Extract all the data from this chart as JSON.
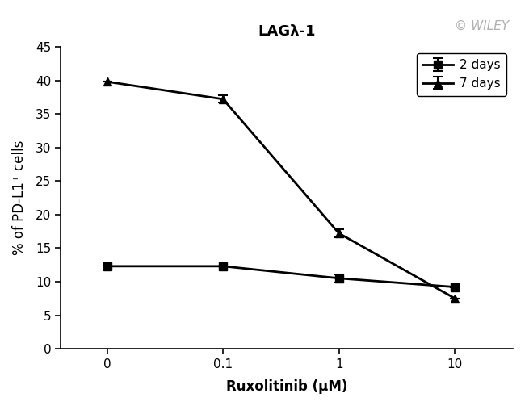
{
  "title": "LAGλ-1",
  "xlabel": "Ruxolitinib (μM)",
  "ylabel": "% of PD-L1⁺ cells",
  "x_labels": [
    "0",
    "0.1",
    "1",
    "10"
  ],
  "x_positions": [
    0,
    1,
    2,
    3
  ],
  "series": [
    {
      "label": "2 days",
      "marker": "s",
      "y": [
        12.3,
        12.3,
        10.5,
        9.2
      ],
      "yerr": [
        0.0,
        0.0,
        0.6,
        0.0
      ]
    },
    {
      "label": "7 days",
      "marker": "^",
      "y": [
        39.8,
        37.2,
        17.2,
        7.5
      ],
      "yerr": [
        0.0,
        0.55,
        0.6,
        0.0
      ]
    }
  ],
  "ylim": [
    0,
    45
  ],
  "yticks": [
    0,
    5,
    10,
    15,
    20,
    25,
    30,
    35,
    40,
    45
  ],
  "line_color": "#000000",
  "line_width": 2.0,
  "marker_size": 7,
  "legend_loc": "upper right",
  "title_fontsize": 13,
  "label_fontsize": 12,
  "tick_fontsize": 11,
  "legend_fontsize": 11,
  "watermark_text": "© WILEY",
  "background_color": "#ffffff",
  "plot_bg_color": "#ffffff"
}
